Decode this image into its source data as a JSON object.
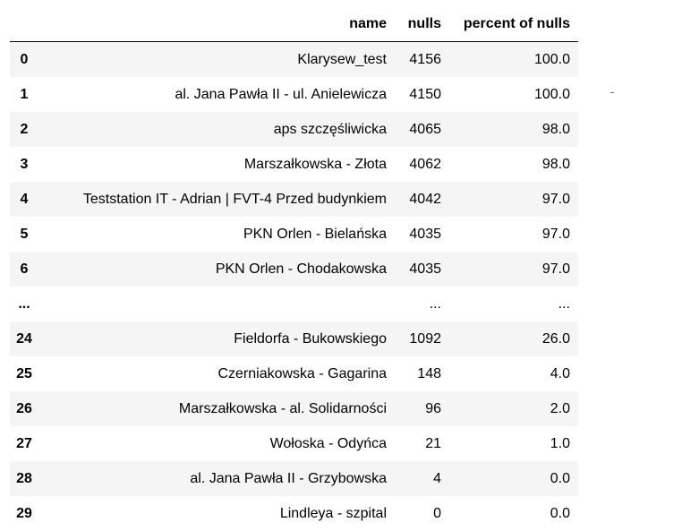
{
  "columns": [
    "name",
    "nulls",
    "percent of nulls"
  ],
  "rows": [
    {
      "index": "0",
      "name": "Klarysew_test",
      "nulls": "4156",
      "percent": "100.0"
    },
    {
      "index": "1",
      "name": "al. Jana Pawła II - ul. Anielewicza",
      "nulls": "4150",
      "percent": "100.0"
    },
    {
      "index": "2",
      "name": "aps szczęśliwicka",
      "nulls": "4065",
      "percent": "98.0"
    },
    {
      "index": "3",
      "name": "Marszałkowska - Złota",
      "nulls": "4062",
      "percent": "98.0"
    },
    {
      "index": "4",
      "name": "Teststation IT - Adrian | FVT-4 Przed budynkiem",
      "nulls": "4042",
      "percent": "97.0"
    },
    {
      "index": "5",
      "name": "PKN Orlen - Bielańska",
      "nulls": "4035",
      "percent": "97.0"
    },
    {
      "index": "6",
      "name": "PKN Orlen - Chodakowska",
      "nulls": "4035",
      "percent": "97.0"
    },
    {
      "index": "...",
      "name": "",
      "nulls": "...",
      "percent": "..."
    },
    {
      "index": "24",
      "name": "Fieldorfa - Bukowskiego",
      "nulls": "1092",
      "percent": "26.0"
    },
    {
      "index": "25",
      "name": "Czerniakowska - Gagarina",
      "nulls": "148",
      "percent": "4.0"
    },
    {
      "index": "26",
      "name": "Marszałkowska - al. Solidarności",
      "nulls": "96",
      "percent": "2.0"
    },
    {
      "index": "27",
      "name": "Wołoska - Odyńca",
      "nulls": "21",
      "percent": "1.0"
    },
    {
      "index": "28",
      "name": "al. Jana Pawła II - Grzybowska",
      "nulls": "4",
      "percent": "0.0"
    },
    {
      "index": "29",
      "name": "Lindleya - szpital",
      "nulls": "0",
      "percent": "0.0"
    }
  ]
}
